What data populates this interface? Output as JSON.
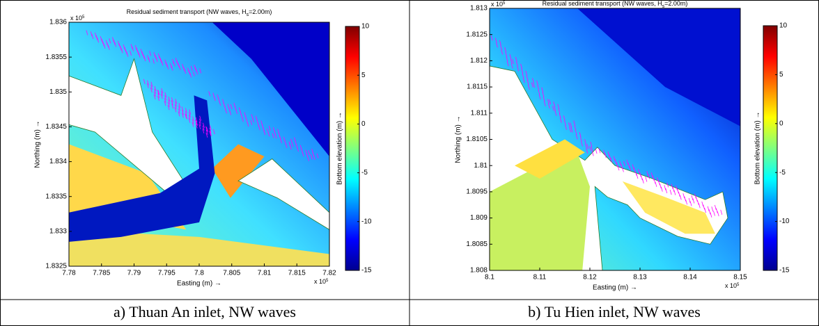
{
  "chart_data": [
    {
      "type": "map",
      "title": [
        "Residual sediment transport (NW waves, H",
        "s",
        "=2.00m)"
      ],
      "xlabel": "Easting (m) →",
      "ylabel": "Northing (m) →",
      "x_multiplier": [
        "x 10",
        "5"
      ],
      "y_multiplier": [
        "x 10",
        "5"
      ],
      "xlim": [
        7.78,
        7.82
      ],
      "xticks": [
        7.78,
        7.785,
        7.79,
        7.795,
        7.8,
        7.805,
        7.81,
        7.815,
        7.82
      ],
      "ylim": [
        1.8325,
        1.836
      ],
      "yticks": [
        1.8325,
        1.833,
        1.8335,
        1.834,
        1.8345,
        1.835,
        1.8355,
        1.836
      ],
      "colorbar_label": "Bottom elevation (m) →",
      "clim": [
        -15,
        10
      ],
      "cticks": [
        -15,
        -10,
        -5,
        0,
        5,
        10
      ],
      "colormap": "jet",
      "vector_color": "#ff00ff",
      "caption": "a) Thuan An inlet, NW waves"
    },
    {
      "type": "map",
      "title": [
        "Residual sediment transport (NW waves, H",
        "s",
        "=2.00m)"
      ],
      "xlabel": "Easting (m) →",
      "ylabel": "Northing (m) →",
      "x_multiplier": [
        "x 10",
        "5"
      ],
      "y_multiplier": [
        "x 10",
        "5"
      ],
      "xlim": [
        8.1,
        8.15
      ],
      "xticks": [
        8.1,
        8.11,
        8.12,
        8.13,
        8.14,
        8.15
      ],
      "ylim": [
        1.808,
        1.813
      ],
      "yticks": [
        1.808,
        1.8085,
        1.809,
        1.8095,
        1.81,
        1.8105,
        1.811,
        1.8115,
        1.812,
        1.8125,
        1.813
      ],
      "colorbar_label": "Bottom elevation (m) →",
      "clim": [
        -15,
        10
      ],
      "cticks": [
        -15,
        -10,
        -5,
        0,
        5,
        10
      ],
      "colormap": "jet",
      "vector_color": "#ff00ff",
      "caption": "b) Tu Hien inlet, NW waves"
    }
  ]
}
